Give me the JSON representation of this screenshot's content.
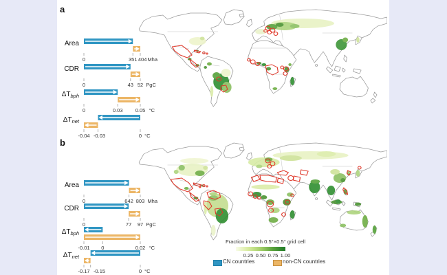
{
  "chart_data": [
    {
      "panel": "a",
      "type": "bar",
      "orientation": "horizontal",
      "series_names": [
        "CN countries",
        "non-CN countries"
      ],
      "rows": [
        {
          "label": "Area",
          "sub": "",
          "unit": "Mha",
          "ticks": [
            {
              "v": 0,
              "t": "0"
            },
            {
              "v": 351,
              "t": "351"
            },
            {
              "v": 404,
              "t": "404"
            }
          ],
          "cn": {
            "from": 0,
            "to": 351
          },
          "non_cn": {
            "from": 351,
            "to": 404
          }
        },
        {
          "label": "CDR",
          "sub": "",
          "unit": "PgC",
          "ticks": [
            {
              "v": 0,
              "t": "0"
            },
            {
              "v": 43,
              "t": "43"
            },
            {
              "v": 52,
              "t": "52"
            }
          ],
          "cn": {
            "from": 0,
            "to": 43
          },
          "non_cn": {
            "from": 43,
            "to": 52
          }
        },
        {
          "label": "ΔT",
          "sub": "bph",
          "unit": "°C",
          "ticks": [
            {
              "v": 0,
              "t": "0"
            },
            {
              "v": 0.03,
              "t": "0.03"
            },
            {
              "v": 0.05,
              "t": "0.05"
            }
          ],
          "cn": {
            "from": 0,
            "to": 0.03
          },
          "non_cn": {
            "from": 0.03,
            "to": 0.05
          }
        },
        {
          "label": "ΔT",
          "sub": "net",
          "unit": "°C",
          "ticks": [
            {
              "v": -0.04,
              "t": "-0.04"
            },
            {
              "v": -0.03,
              "t": "-0.03"
            },
            {
              "v": 0,
              "t": "0"
            }
          ],
          "cn": {
            "from": 0,
            "to": -0.03
          },
          "non_cn": {
            "from": -0.03,
            "to": -0.04
          }
        }
      ]
    },
    {
      "panel": "b",
      "type": "bar",
      "orientation": "horizontal",
      "series_names": [
        "CN countries",
        "non-CN countries"
      ],
      "rows": [
        {
          "label": "Area",
          "sub": "",
          "unit": "Mha",
          "ticks": [
            {
              "v": 0,
              "t": "0"
            },
            {
              "v": 642,
              "t": "642"
            },
            {
              "v": 803,
              "t": "803"
            }
          ],
          "cn": {
            "from": 0,
            "to": 642
          },
          "non_cn": {
            "from": 642,
            "to": 803
          }
        },
        {
          "label": "CDR",
          "sub": "",
          "unit": "PgC",
          "ticks": [
            {
              "v": 0,
              "t": "0"
            },
            {
              "v": 77,
              "t": "77"
            },
            {
              "v": 97,
              "t": "97"
            }
          ],
          "cn": {
            "from": 0,
            "to": 77
          },
          "non_cn": {
            "from": 77,
            "to": 97
          }
        },
        {
          "label": "ΔT",
          "sub": "bph",
          "unit": "°C",
          "ticks": [
            {
              "v": -0.01,
              "t": "-0.01"
            },
            {
              "v": 0,
              "t": "0"
            },
            {
              "v": 0.02,
              "t": "0.02"
            }
          ],
          "cn": {
            "from": 0,
            "to": -0.01
          },
          "non_cn": {
            "from": -0.01,
            "to": 0.02
          }
        },
        {
          "label": "ΔT",
          "sub": "net",
          "unit": "°C",
          "ticks": [
            {
              "v": -0.17,
              "t": "-0.17"
            },
            {
              "v": -0.15,
              "t": "-0.15"
            },
            {
              "v": 0,
              "t": "0"
            }
          ],
          "cn": {
            "from": 0,
            "to": -0.15
          },
          "non_cn": {
            "from": -0.15,
            "to": -0.17
          }
        }
      ]
    }
  ],
  "legend": {
    "gradient_title": "Fraction in each 0.5°×0.5° grid cell",
    "gradient_ticks": [
      {
        "v": 0.25,
        "t": "0.25"
      },
      {
        "v": 0.5,
        "t": "0.50"
      },
      {
        "v": 0.75,
        "t": "0.75"
      },
      {
        "v": 1,
        "t": "1.00"
      }
    ],
    "cn_label": "CN countries",
    "non_cn_label": "non-CN countries"
  },
  "colors": {
    "cn_blue": "#3096c3",
    "cn_blue_border": "#1f7fa9",
    "non_cn_orange": "#ecb666",
    "non_cn_orange_border": "#c89040",
    "red_country_outline": "#e0392b",
    "map_land_border": "#9b9b9b",
    "green_scale": [
      "#f9fce9",
      "#d8ec9f",
      "#a4cf6a",
      "#58a13b",
      "#1e7a27"
    ],
    "background": "#e7e9f7",
    "canvas": "#ffffff"
  }
}
